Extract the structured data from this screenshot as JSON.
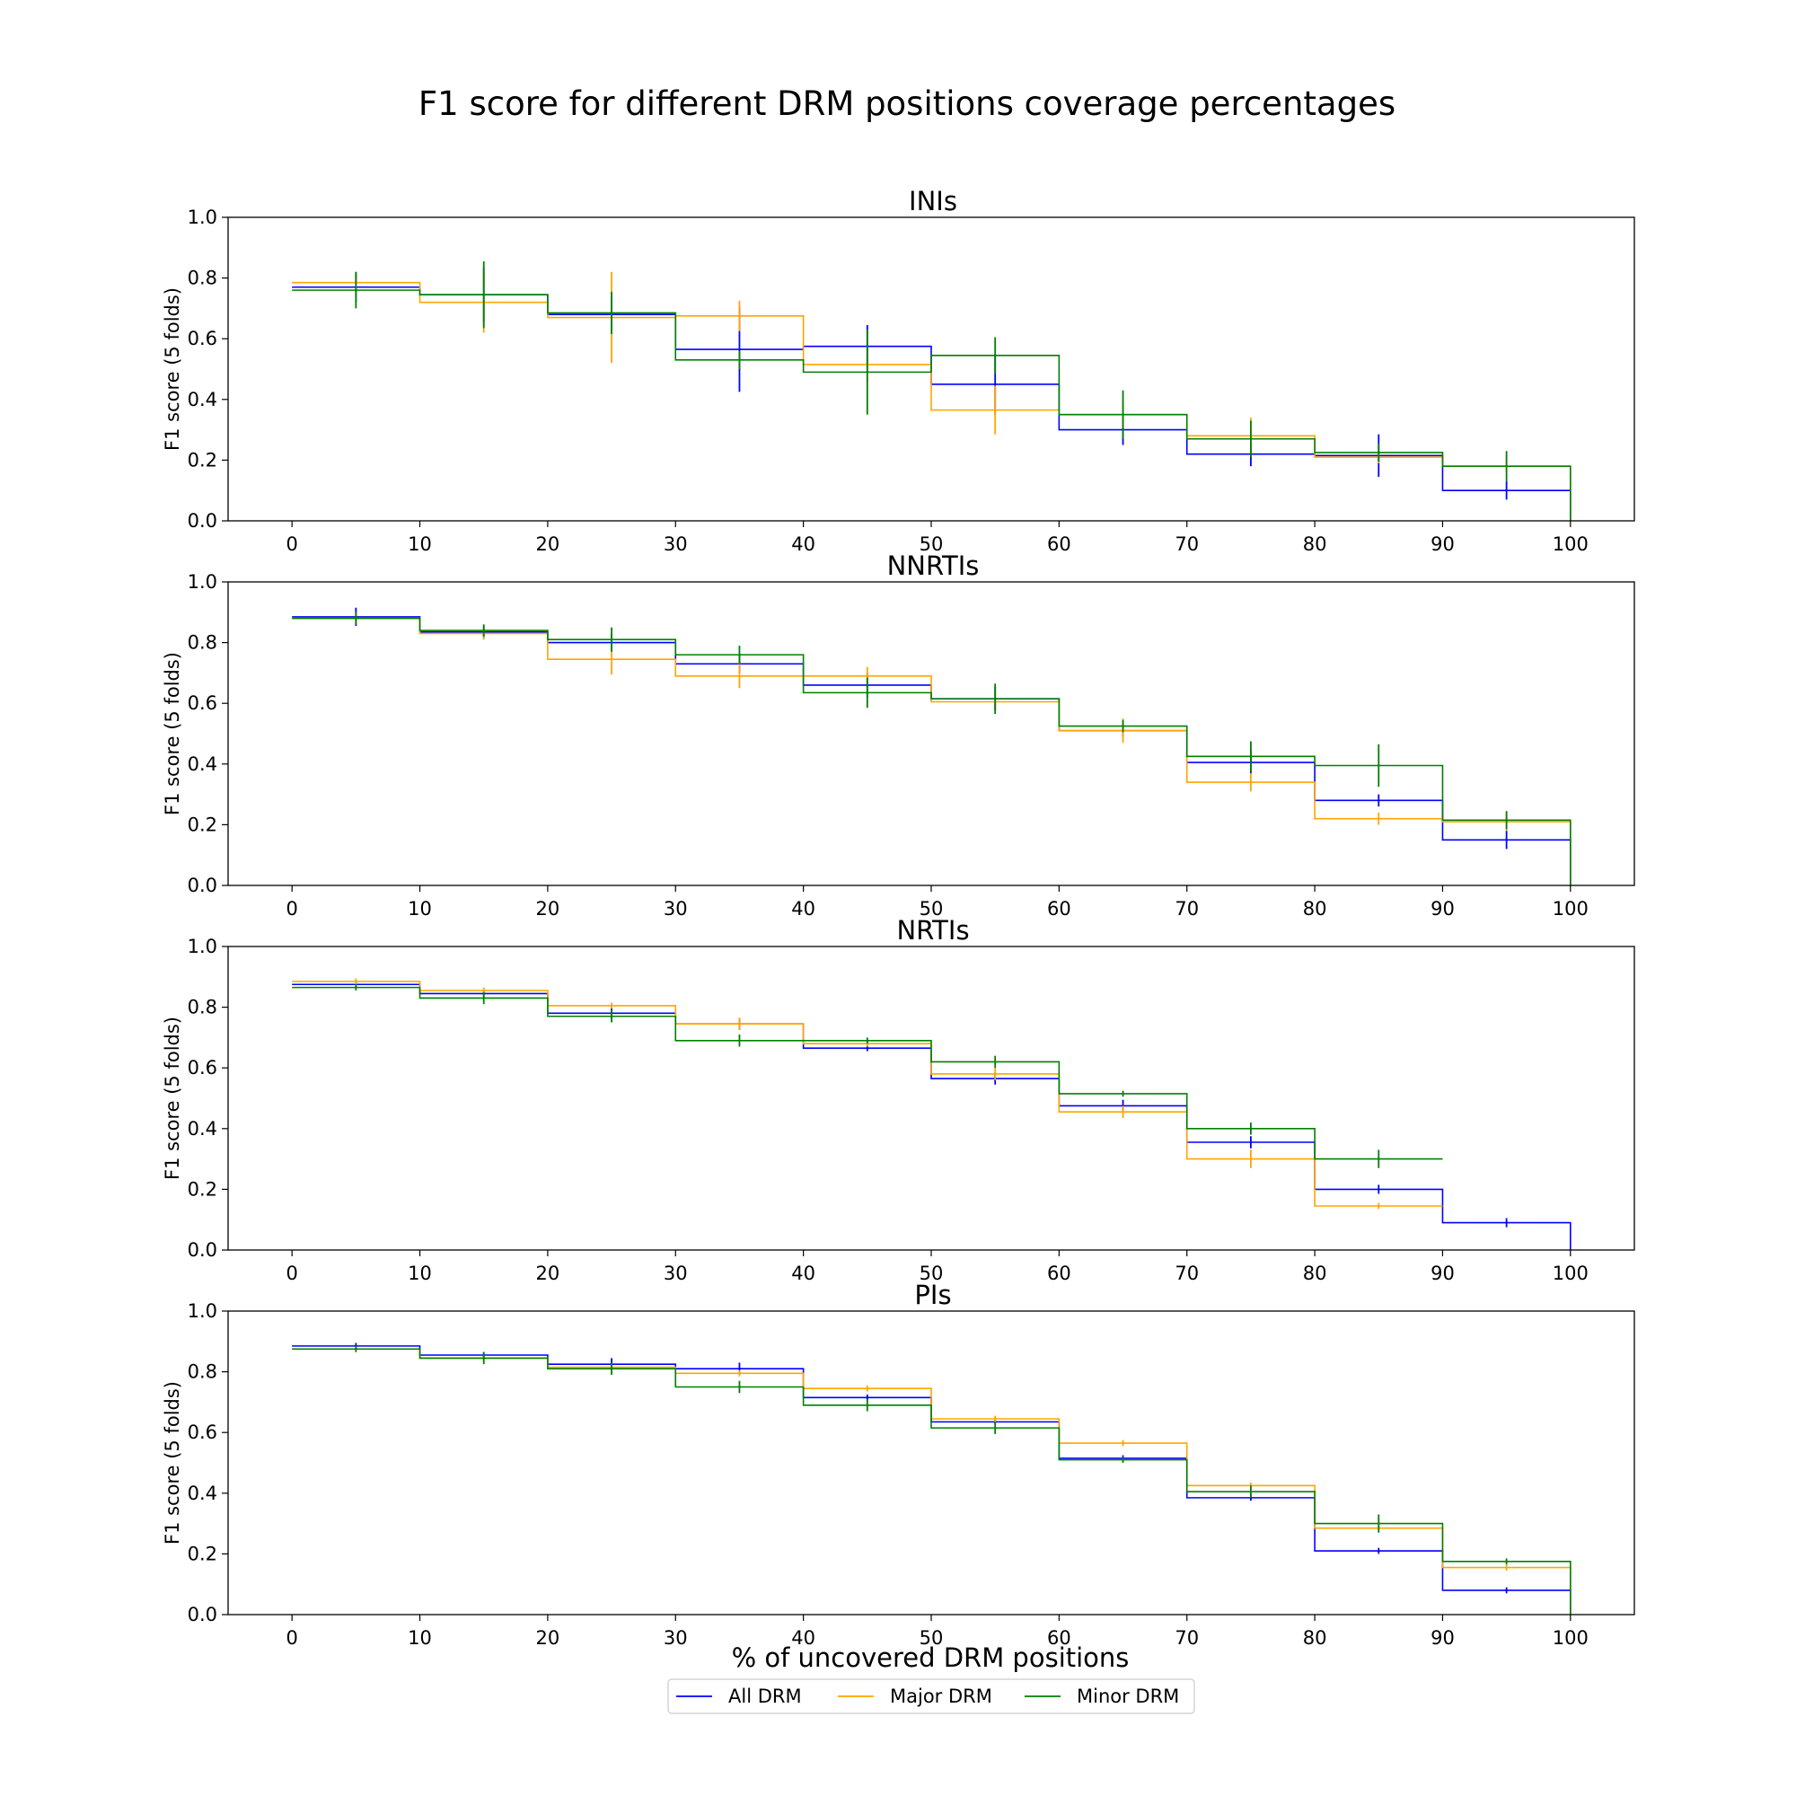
{
  "title": "F1 score for different DRM positions coverage percentages",
  "xlabel": "% of uncovered DRM positions",
  "legend": {
    "items": [
      "All DRM",
      "Major DRM",
      "Minor DRM"
    ],
    "placement": "bottom-center"
  },
  "colors": {
    "All DRM": "#0000ff",
    "Major DRM": "#ffa500",
    "Minor DRM": "#008000"
  },
  "chart_data": [
    {
      "type": "line",
      "step": true,
      "title": "INIs",
      "ylabel": "F1 score (5 folds)",
      "xlim": [
        -5,
        105
      ],
      "ylim": [
        0,
        1
      ],
      "xticks": [
        "0",
        "10",
        "20",
        "30",
        "40",
        "50",
        "60",
        "70",
        "80",
        "90",
        "100"
      ],
      "yticks": [
        "0.0",
        "0.2",
        "0.4",
        "0.6",
        "0.8",
        "1.0"
      ],
      "x": [
        5,
        15,
        25,
        35,
        45,
        55,
        65,
        75,
        85,
        95
      ],
      "series": [
        {
          "name": "All DRM",
          "values": [
            0.77,
            0.745,
            0.68,
            0.565,
            0.575,
            0.45,
            0.3,
            0.22,
            0.215,
            0.1
          ],
          "errors": [
            0.05,
            0.09,
            0.06,
            0.14,
            0.07,
            0.1,
            0.05,
            0.04,
            0.07,
            0.03
          ]
        },
        {
          "name": "Major DRM",
          "values": [
            0.785,
            0.72,
            0.67,
            0.675,
            0.515,
            0.365,
            0.35,
            0.28,
            0.21,
            0.18
          ],
          "errors": [
            0.03,
            0.1,
            0.15,
            0.05,
            0.06,
            0.08,
            0.04,
            0.06,
            0.02,
            0.02
          ]
        },
        {
          "name": "Minor DRM",
          "values": [
            0.76,
            0.745,
            0.685,
            0.53,
            0.49,
            0.545,
            0.35,
            0.27,
            0.225,
            0.18
          ],
          "errors": [
            0.06,
            0.11,
            0.07,
            0.03,
            0.14,
            0.06,
            0.08,
            0.06,
            0.03,
            0.05
          ]
        }
      ]
    },
    {
      "type": "line",
      "step": true,
      "title": "NNRTIs",
      "ylabel": "F1 score (5 folds)",
      "xlim": [
        -5,
        105
      ],
      "ylim": [
        0,
        1
      ],
      "xticks": [
        "0",
        "10",
        "20",
        "30",
        "40",
        "50",
        "60",
        "70",
        "80",
        "90",
        "100"
      ],
      "yticks": [
        "0.0",
        "0.2",
        "0.4",
        "0.6",
        "0.8",
        "1.0"
      ],
      "x": [
        5,
        15,
        25,
        35,
        45,
        55,
        65,
        75,
        85,
        95
      ],
      "series": [
        {
          "name": "All DRM",
          "values": [
            0.885,
            0.835,
            0.8,
            0.73,
            0.66,
            0.615,
            0.51,
            0.405,
            0.28,
            0.15
          ],
          "errors": [
            0.03,
            0.02,
            0.03,
            0.03,
            0.04,
            0.04,
            0.02,
            0.04,
            0.02,
            0.03
          ]
        },
        {
          "name": "Major DRM",
          "values": [
            0.88,
            0.83,
            0.745,
            0.69,
            0.69,
            0.605,
            0.51,
            0.34,
            0.22,
            0.21
          ],
          "errors": [
            0.02,
            0.02,
            0.05,
            0.04,
            0.03,
            0.03,
            0.04,
            0.03,
            0.02,
            0.03
          ]
        },
        {
          "name": "Minor DRM",
          "values": [
            0.88,
            0.84,
            0.81,
            0.76,
            0.635,
            0.615,
            0.525,
            0.425,
            0.395,
            0.215
          ],
          "errors": [
            0.02,
            0.02,
            0.04,
            0.03,
            0.05,
            0.05,
            0.02,
            0.05,
            0.07,
            0.03
          ]
        }
      ]
    },
    {
      "type": "line",
      "step": true,
      "title": "NRTIs",
      "ylabel": "F1 score (5 folds)",
      "xlim": [
        -5,
        105
      ],
      "ylim": [
        0,
        1
      ],
      "xticks": [
        "0",
        "10",
        "20",
        "30",
        "40",
        "50",
        "60",
        "70",
        "80",
        "90",
        "100"
      ],
      "yticks": [
        "0.0",
        "0.2",
        "0.4",
        "0.6",
        "0.8",
        "1.0"
      ],
      "x": [
        5,
        15,
        25,
        35,
        45,
        55,
        65,
        75,
        85,
        95
      ],
      "series": [
        {
          "name": "All DRM",
          "values": [
            0.875,
            0.845,
            0.78,
            0.745,
            0.665,
            0.565,
            0.475,
            0.355,
            0.2,
            0.09
          ],
          "errors": [
            0.01,
            0.01,
            0.02,
            0.02,
            0.01,
            0.02,
            0.02,
            0.02,
            0.015,
            0.015
          ]
        },
        {
          "name": "Major DRM",
          "values": [
            0.885,
            0.855,
            0.805,
            0.745,
            0.68,
            0.58,
            0.455,
            0.3,
            0.145,
            null
          ],
          "errors": [
            0.01,
            0.01,
            0.01,
            0.02,
            0.01,
            0.02,
            0.02,
            0.03,
            0.01,
            null
          ]
        },
        {
          "name": "Minor DRM",
          "values": [
            0.865,
            0.83,
            0.77,
            0.69,
            0.69,
            0.62,
            0.515,
            0.4,
            0.3,
            null
          ],
          "errors": [
            0.01,
            0.02,
            0.02,
            0.02,
            0.01,
            0.02,
            0.01,
            0.02,
            0.03,
            null
          ]
        }
      ]
    },
    {
      "type": "line",
      "step": true,
      "title": "PIs",
      "ylabel": "F1 score (5 folds)",
      "xlim": [
        -5,
        105
      ],
      "ylim": [
        0,
        1
      ],
      "xticks": [
        "0",
        "10",
        "20",
        "30",
        "40",
        "50",
        "60",
        "70",
        "80",
        "90",
        "100"
      ],
      "yticks": [
        "0.0",
        "0.2",
        "0.4",
        "0.6",
        "0.8",
        "1.0"
      ],
      "x": [
        5,
        15,
        25,
        35,
        45,
        55,
        65,
        75,
        85,
        95
      ],
      "series": [
        {
          "name": "All DRM",
          "values": [
            0.885,
            0.855,
            0.825,
            0.81,
            0.715,
            0.635,
            0.515,
            0.385,
            0.21,
            0.08
          ],
          "errors": [
            0.01,
            0.01,
            0.02,
            0.02,
            0.01,
            0.01,
            0.01,
            0.01,
            0.01,
            0.01
          ]
        },
        {
          "name": "Major DRM",
          "values": [
            0.875,
            0.845,
            0.815,
            0.795,
            0.745,
            0.645,
            0.565,
            0.425,
            0.285,
            0.155
          ],
          "errors": [
            0.01,
            0.01,
            0.01,
            0.01,
            0.01,
            0.01,
            0.01,
            0.01,
            0.01,
            0.01
          ]
        },
        {
          "name": "Minor DRM",
          "values": [
            0.875,
            0.845,
            0.81,
            0.75,
            0.69,
            0.615,
            0.51,
            0.405,
            0.3,
            0.175
          ],
          "errors": [
            0.01,
            0.02,
            0.02,
            0.02,
            0.02,
            0.02,
            0.01,
            0.02,
            0.03,
            0.01
          ]
        }
      ]
    }
  ]
}
